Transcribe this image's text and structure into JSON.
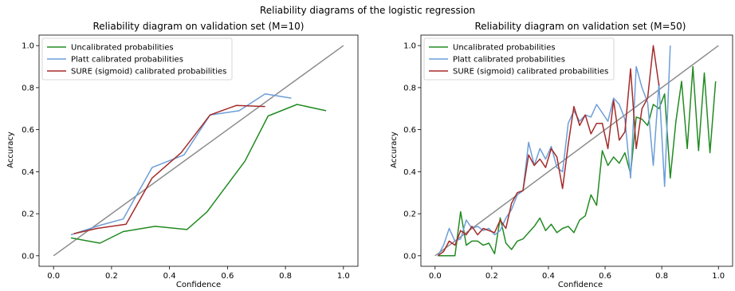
{
  "suptitle": "Reliability diagrams of the logistic regression",
  "colors": {
    "uncalibrated": "#228b22",
    "platt": "#6d9ed8",
    "sure": "#a52a2a",
    "diagonal": "#8c8c8c"
  },
  "chart_data": [
    {
      "type": "line",
      "title": "Reliability diagram on validation set (M=10)",
      "xlabel": "Confidence",
      "ylabel": "Accuracy",
      "xlim": [
        -0.05,
        1.05
      ],
      "ylim": [
        -0.05,
        1.05
      ],
      "xticks": [
        "0.0",
        "0.2",
        "0.4",
        "0.6",
        "0.8",
        "1.0"
      ],
      "yticks": [
        "0.0",
        "0.2",
        "0.4",
        "0.6",
        "0.8",
        "1.0"
      ],
      "legend_position": "upper-left",
      "diagonal": [
        [
          0,
          0
        ],
        [
          1,
          1
        ]
      ],
      "series": [
        {
          "name": "Uncalibrated probabilities",
          "color_key": "uncalibrated",
          "x": [
            0.06,
            0.16,
            0.24,
            0.35,
            0.46,
            0.53,
            0.66,
            0.74,
            0.84,
            0.94
          ],
          "y": [
            0.085,
            0.06,
            0.115,
            0.14,
            0.125,
            0.21,
            0.45,
            0.665,
            0.72,
            0.69
          ]
        },
        {
          "name": "Platt calibrated probabilities",
          "color_key": "platt",
          "x": [
            0.06,
            0.16,
            0.24,
            0.34,
            0.45,
            0.54,
            0.64,
            0.73,
            0.82
          ],
          "y": [
            0.1,
            0.145,
            0.175,
            0.42,
            0.48,
            0.67,
            0.69,
            0.77,
            0.75
          ]
        },
        {
          "name": "SURE (sigmoid) calibrated probabilities",
          "color_key": "sure",
          "x": [
            0.07,
            0.15,
            0.25,
            0.34,
            0.44,
            0.54,
            0.63,
            0.73
          ],
          "y": [
            0.105,
            0.13,
            0.15,
            0.37,
            0.49,
            0.67,
            0.715,
            0.71
          ]
        }
      ]
    },
    {
      "type": "line",
      "title": "Reliability diagram on validation set (M=50)",
      "xlabel": "Confidence",
      "ylabel": "Accuracy",
      "xlim": [
        -0.05,
        1.05
      ],
      "ylim": [
        -0.05,
        1.05
      ],
      "xticks": [
        "0.0",
        "0.2",
        "0.4",
        "0.6",
        "0.8",
        "1.0"
      ],
      "yticks": [
        "0.0",
        "0.2",
        "0.4",
        "0.6",
        "0.8",
        "1.0"
      ],
      "legend_position": "upper-left",
      "diagonal": [
        [
          0,
          0
        ],
        [
          1,
          1
        ]
      ],
      "series": [
        {
          "name": "Uncalibrated probabilities",
          "color_key": "uncalibrated",
          "x": [
            0.01,
            0.03,
            0.05,
            0.07,
            0.09,
            0.11,
            0.13,
            0.15,
            0.17,
            0.19,
            0.21,
            0.23,
            0.25,
            0.27,
            0.29,
            0.31,
            0.33,
            0.35,
            0.37,
            0.39,
            0.41,
            0.43,
            0.45,
            0.47,
            0.49,
            0.51,
            0.53,
            0.55,
            0.57,
            0.59,
            0.61,
            0.63,
            0.65,
            0.67,
            0.69,
            0.71,
            0.73,
            0.75,
            0.77,
            0.79,
            0.81,
            0.83,
            0.85,
            0.87,
            0.89,
            0.91,
            0.93,
            0.95,
            0.97,
            0.99
          ],
          "y": [
            0.0,
            0.0,
            0.0,
            0.0,
            0.21,
            0.05,
            0.07,
            0.07,
            0.05,
            0.06,
            0.01,
            0.18,
            0.06,
            0.03,
            0.07,
            0.08,
            0.11,
            0.14,
            0.18,
            0.12,
            0.15,
            0.11,
            0.13,
            0.14,
            0.11,
            0.17,
            0.19,
            0.29,
            0.24,
            0.5,
            0.43,
            0.47,
            0.44,
            0.49,
            0.39,
            0.66,
            0.65,
            0.62,
            0.72,
            0.7,
            0.77,
            0.37,
            0.64,
            0.83,
            0.51,
            0.9,
            0.5,
            0.87,
            0.49,
            0.83
          ]
        },
        {
          "name": "Platt calibrated probabilities",
          "color_key": "platt",
          "x": [
            0.01,
            0.03,
            0.05,
            0.07,
            0.09,
            0.11,
            0.13,
            0.15,
            0.17,
            0.19,
            0.21,
            0.23,
            0.25,
            0.27,
            0.29,
            0.31,
            0.33,
            0.35,
            0.37,
            0.39,
            0.41,
            0.43,
            0.45,
            0.47,
            0.49,
            0.51,
            0.53,
            0.55,
            0.57,
            0.59,
            0.61,
            0.63,
            0.65,
            0.67,
            0.69,
            0.71,
            0.73,
            0.75,
            0.77,
            0.79,
            0.81,
            0.83
          ],
          "y": [
            0.0,
            0.05,
            0.13,
            0.07,
            0.08,
            0.17,
            0.13,
            0.14,
            0.12,
            0.13,
            0.1,
            0.12,
            0.18,
            0.22,
            0.29,
            0.31,
            0.54,
            0.43,
            0.51,
            0.46,
            0.52,
            0.42,
            0.4,
            0.63,
            0.69,
            0.64,
            0.67,
            0.66,
            0.72,
            0.68,
            0.64,
            0.75,
            0.72,
            0.65,
            0.37,
            0.9,
            0.8,
            0.73,
            0.43,
            0.82,
            0.33,
            1.0
          ]
        },
        {
          "name": "SURE (sigmoid) calibrated probabilities",
          "color_key": "sure",
          "x": [
            0.01,
            0.03,
            0.05,
            0.07,
            0.09,
            0.11,
            0.13,
            0.15,
            0.17,
            0.19,
            0.21,
            0.23,
            0.25,
            0.27,
            0.29,
            0.31,
            0.33,
            0.35,
            0.37,
            0.39,
            0.41,
            0.43,
            0.45,
            0.47,
            0.49,
            0.51,
            0.53,
            0.55,
            0.57,
            0.59,
            0.61,
            0.63,
            0.65,
            0.67,
            0.69,
            0.71,
            0.73,
            0.75,
            0.77,
            0.79
          ],
          "y": [
            0.0,
            0.02,
            0.07,
            0.05,
            0.12,
            0.1,
            0.14,
            0.1,
            0.13,
            0.12,
            0.11,
            0.17,
            0.13,
            0.25,
            0.3,
            0.31,
            0.48,
            0.43,
            0.46,
            0.42,
            0.51,
            0.47,
            0.32,
            0.53,
            0.71,
            0.62,
            0.67,
            0.58,
            0.63,
            0.63,
            0.51,
            0.74,
            0.55,
            0.59,
            0.89,
            0.51,
            0.7,
            0.75,
            1.0,
            0.81
          ]
        }
      ]
    }
  ]
}
